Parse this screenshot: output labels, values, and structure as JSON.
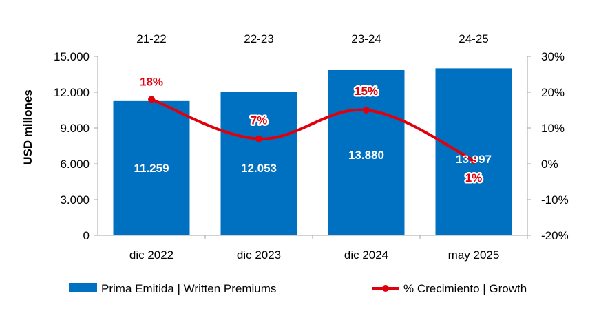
{
  "chart_data": {
    "type": "bar",
    "categories": [
      "dic 2022",
      "dic 2023",
      "dic 2024",
      "may 2025"
    ],
    "periods": [
      "21-22",
      "22-23",
      "23-24",
      "24-25"
    ],
    "series": [
      {
        "name": "Prima Emitida | Written Premiums",
        "type": "bar",
        "axis": "left",
        "values": [
          11259,
          12053,
          13880,
          13997
        ],
        "labels": [
          "11.259",
          "12.053",
          "13.880",
          "13.997"
        ],
        "color": "#0070c0"
      },
      {
        "name": "% Crecimiento | Growth",
        "type": "line",
        "axis": "right",
        "values": [
          18,
          7,
          15,
          1
        ],
        "labels": [
          "18%",
          "7%",
          "15%",
          "1%"
        ],
        "color": "#e0000b"
      }
    ],
    "ylabel": "USD millones",
    "ylim": [
      0,
      15000
    ],
    "yticks": [
      "0",
      "3.000",
      "6.000",
      "9.000",
      "12.000",
      "15.000"
    ],
    "ylim_right": [
      -20,
      30
    ],
    "yticks_right": [
      "-20%",
      "-10%",
      "0%",
      "10%",
      "20%",
      "30%"
    ],
    "grid": false,
    "legend": "bottom"
  }
}
